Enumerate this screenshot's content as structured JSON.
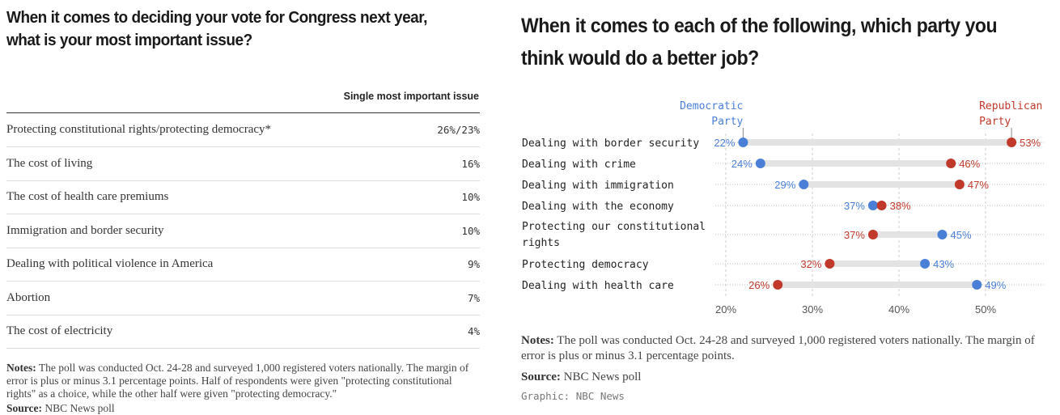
{
  "left": {
    "title": "When it comes to deciding your vote for Congress next year, what is your most important issue?",
    "column_header": "Single most important issue",
    "rows": [
      {
        "label": "Protecting constitutional rights/protecting democracy*",
        "value": "26%/23%"
      },
      {
        "label": "The cost of living",
        "value": "16%"
      },
      {
        "label": "The cost of health care premiums",
        "value": "10%"
      },
      {
        "label": "Immigration and border security",
        "value": "10%"
      },
      {
        "label": "Dealing with political violence in America",
        "value": "9%"
      },
      {
        "label": "Abortion",
        "value": "7%"
      },
      {
        "label": "The cost of electricity",
        "value": "4%"
      }
    ],
    "notes_label": "Notes:",
    "notes": " The poll was conducted Oct. 24-28 and surveyed 1,000 registered voters nationally. The margin of error is plus or minus 3.1 percentage points. Half of respondents were given \"protecting constitutional rights\" as a choice, while the other half were given \"protecting democracy.\"",
    "source_label": "Source:",
    "source": " NBC News poll"
  },
  "right": {
    "title": "When it comes to each of the following, which party you think would do a better job?",
    "notes_label": "Notes:",
    "notes": " The poll was conducted Oct. 24-28 and surveyed 1,000 registered voters nationally. The margin of error is plus or minus 3.1 percentage points.",
    "source_label": "Source:",
    "source": " NBC News poll",
    "graphic": "Graphic: NBC News"
  },
  "chart_data": {
    "type": "dot",
    "categories": [
      "Dealing with border security",
      "Dealing with crime",
      "Dealing with immigration",
      "Dealing with the economy",
      "Protecting our constitutional rights",
      "Protecting democracy",
      "Dealing with health care"
    ],
    "series": [
      {
        "name": "Democratic Party",
        "color": "#4a7fd8",
        "values": [
          22,
          24,
          29,
          37,
          45,
          43,
          49
        ]
      },
      {
        "name": "Republican Party",
        "color": "#c0392b",
        "values": [
          53,
          46,
          47,
          38,
          37,
          32,
          26
        ]
      }
    ],
    "xticks": [
      "20%",
      "30%",
      "40%",
      "50%"
    ],
    "xlim": [
      20,
      55
    ],
    "grid": true
  }
}
